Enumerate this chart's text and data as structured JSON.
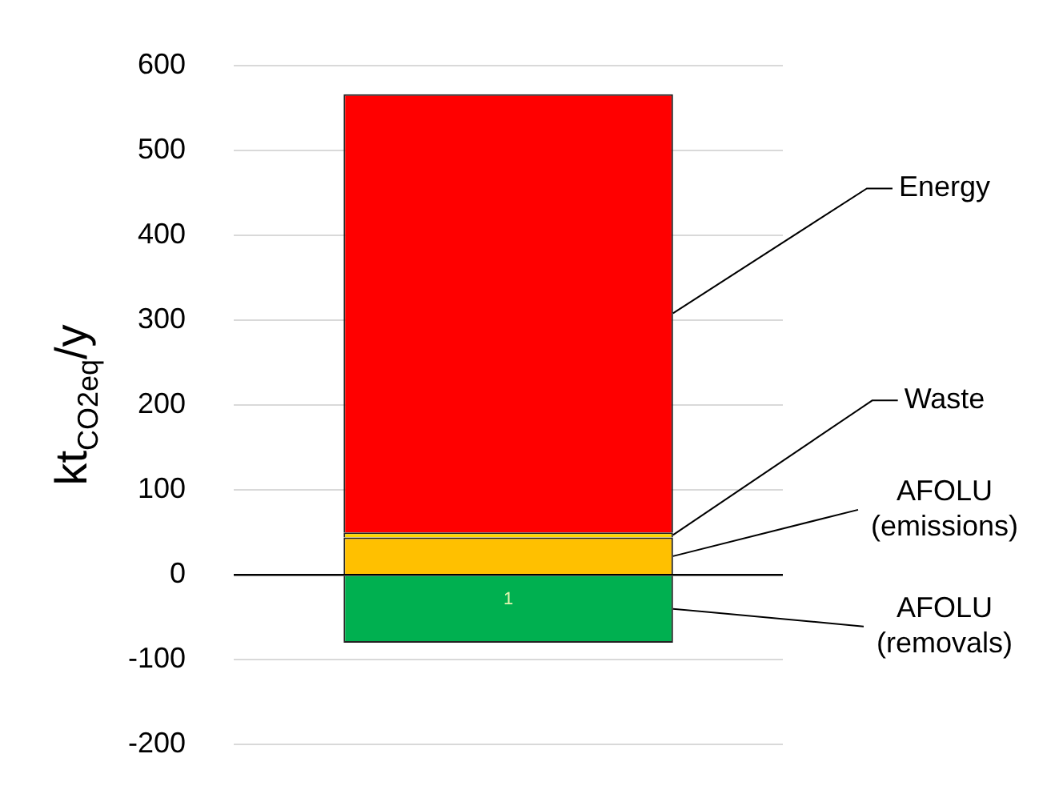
{
  "chart_data": {
    "type": "bar",
    "ylabel": "kt$_{CO2eq}$/y",
    "categories": [
      "1"
    ],
    "stacked": true,
    "grid": "y",
    "ylim": [
      -200,
      600
    ],
    "yticks": [
      -200,
      -100,
      0,
      100,
      200,
      300,
      400,
      500,
      600
    ],
    "series": [
      {
        "name": "AFOLU (emissions)",
        "color": "#ffc000",
        "values": [
          44
        ]
      },
      {
        "name": "Waste",
        "color": "#ffd700",
        "values": [
          6
        ]
      },
      {
        "name": "Energy",
        "color": "#ff0000",
        "values": [
          516
        ]
      },
      {
        "name": "AFOLU (removals)",
        "color": "#00b050",
        "values": [
          -80
        ]
      }
    ]
  }
}
